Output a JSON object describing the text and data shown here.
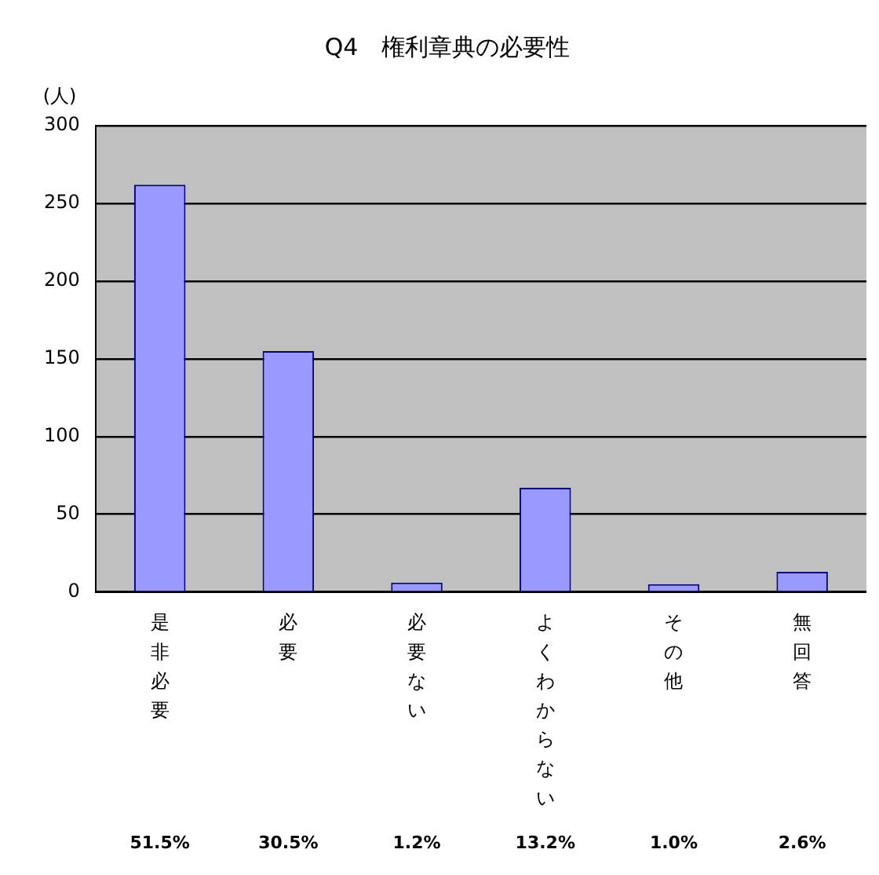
{
  "chart_data": {
    "type": "bar",
    "title": "Q4　権利章典の必要性",
    "ylabel": "(人)",
    "categories": [
      "是非必要",
      "必要",
      "必要ない",
      "よくわからない",
      "その他",
      "無回答"
    ],
    "values": [
      262,
      155,
      6,
      67,
      5,
      13
    ],
    "annotations": [
      "51.5%",
      "30.5%",
      "1.2%",
      "13.2%",
      "1.0%",
      "2.6%"
    ],
    "color": "#9999ff",
    "ylim": [
      0,
      300
    ],
    "yticks": [
      0,
      50,
      100,
      150,
      200,
      250,
      300
    ],
    "grid": "y",
    "legend": false
  }
}
